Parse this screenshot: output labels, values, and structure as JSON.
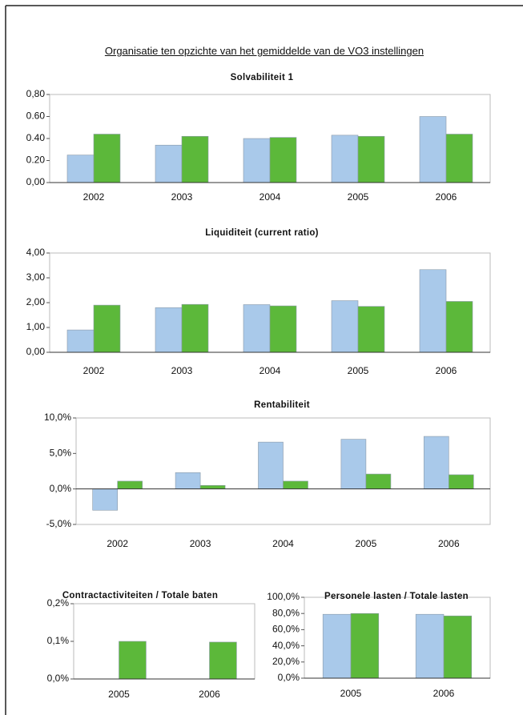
{
  "page_title": "Organisatie ten opzichte van het gemiddelde van de VO3 instellingen",
  "chart_data": [
    {
      "type": "bar",
      "title": "Solvabiliteit 1",
      "categories": [
        "2002",
        "2003",
        "2004",
        "2005",
        "2006"
      ],
      "series": [
        {
          "color": "#a9c9ea",
          "values": [
            0.25,
            0.34,
            0.4,
            0.43,
            0.6
          ]
        },
        {
          "color": "#5cb83a",
          "values": [
            0.44,
            0.42,
            0.41,
            0.42,
            0.44
          ]
        }
      ],
      "ylim": [
        0,
        0.8
      ],
      "yticks": [
        {
          "value": 0,
          "label": "0,00"
        },
        {
          "value": 0.2,
          "label": "0.20"
        },
        {
          "value": 0.4,
          "label": "0.40"
        },
        {
          "value": 0.6,
          "label": "0.60"
        },
        {
          "value": 0.8,
          "label": "0,80"
        }
      ]
    },
    {
      "type": "bar",
      "title": "Liquiditeit (current ratio)",
      "categories": [
        "2002",
        "2003",
        "2004",
        "2005",
        "2006"
      ],
      "series": [
        {
          "color": "#a9c9ea",
          "values": [
            0.9,
            1.8,
            1.92,
            2.08,
            3.33
          ]
        },
        {
          "color": "#5cb83a",
          "values": [
            1.9,
            1.93,
            1.87,
            1.85,
            2.05
          ]
        }
      ],
      "ylim": [
        0,
        4
      ],
      "yticks": [
        {
          "value": 0,
          "label": "0,00"
        },
        {
          "value": 1,
          "label": "1,00"
        },
        {
          "value": 2,
          "label": "2,00"
        },
        {
          "value": 3,
          "label": "3,00"
        },
        {
          "value": 4,
          "label": "4,00"
        }
      ]
    },
    {
      "type": "bar",
      "title": "Rentabiliteit",
      "categories": [
        "2002",
        "2003",
        "2004",
        "2005",
        "2006"
      ],
      "series": [
        {
          "color": "#a9c9ea",
          "values": [
            -3.0,
            2.3,
            6.6,
            7.0,
            7.4
          ]
        },
        {
          "color": "#5cb83a",
          "values": [
            1.1,
            0.5,
            1.1,
            2.1,
            2.0
          ]
        }
      ],
      "ylim": [
        -5,
        10
      ],
      "yticks": [
        {
          "value": -5,
          "label": "-5,0%"
        },
        {
          "value": 0,
          "label": "0,0%"
        },
        {
          "value": 5,
          "label": "5,0%"
        },
        {
          "value": 10,
          "label": "10,0%"
        }
      ]
    },
    {
      "type": "bar",
      "title": "Contractactiviteiten / Totale baten",
      "categories": [
        "2005",
        "2006"
      ],
      "series": [
        {
          "color": "#a9c9ea",
          "values": [
            0,
            0
          ]
        },
        {
          "color": "#5cb83a",
          "values": [
            0.1,
            0.098
          ]
        }
      ],
      "ylim": [
        0,
        0.2
      ],
      "yticks": [
        {
          "value": 0,
          "label": "0,0%"
        },
        {
          "value": 0.1,
          "label": "0,1%"
        },
        {
          "value": 0.2,
          "label": "0,2%"
        }
      ]
    },
    {
      "type": "bar",
      "title": "Personele lasten / Totale lasten",
      "categories": [
        "2005",
        "2006"
      ],
      "series": [
        {
          "color": "#a9c9ea",
          "values": [
            79,
            79
          ]
        },
        {
          "color": "#5cb83a",
          "values": [
            80,
            77
          ]
        }
      ],
      "ylim": [
        0,
        100
      ],
      "yticks": [
        {
          "value": 0,
          "label": "0,0%"
        },
        {
          "value": 20,
          "label": "20,0%"
        },
        {
          "value": 40,
          "label": "40,0%"
        },
        {
          "value": 60,
          "label": "60,0%"
        },
        {
          "value": 80,
          "label": "80,0%"
        },
        {
          "value": 100,
          "label": "100,0%"
        }
      ]
    }
  ]
}
